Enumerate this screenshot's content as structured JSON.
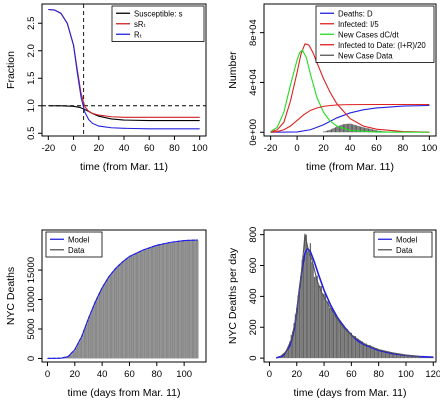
{
  "chart_data": [
    {
      "id": "p1",
      "type": "line",
      "xlabel": "time (from Mar. 11)",
      "ylabel": "Fraction",
      "xlim": [
        -25,
        105
      ],
      "ylim": [
        0.45,
        2.85
      ],
      "xticks": [
        -20,
        0,
        20,
        40,
        60,
        80,
        100
      ],
      "yticks": [
        0.5,
        1.0,
        1.5,
        2.0,
        2.5
      ],
      "ytick_labels": [
        "0.5",
        "1.0",
        "1.5",
        "2.0",
        "2.5"
      ],
      "hlines": [
        {
          "y": 1.0,
          "style": "dashed"
        }
      ],
      "vlines": [
        {
          "x": 8,
          "style": "dashed"
        }
      ],
      "legend": {
        "position": "top-right",
        "entries": [
          "Susceptible: s",
          "sRₜ",
          "Rₜ"
        ]
      },
      "series": [
        {
          "name": "Susceptible: s",
          "color": "#000000",
          "x": [
            -20,
            -10,
            0,
            5,
            10,
            15,
            20,
            30,
            40,
            60,
            100
          ],
          "y": [
            1.0,
            0.999,
            0.99,
            0.97,
            0.92,
            0.86,
            0.81,
            0.76,
            0.74,
            0.73,
            0.73
          ]
        },
        {
          "name": "sRₜ",
          "color": "#cc2222",
          "x": [
            -20,
            -15,
            -10,
            -5,
            0,
            3,
            6,
            9,
            12,
            15,
            20,
            30,
            40,
            60,
            100
          ],
          "y": [
            2.75,
            2.74,
            2.68,
            2.5,
            2.1,
            1.65,
            1.22,
            0.98,
            0.9,
            0.86,
            0.83,
            0.8,
            0.79,
            0.79,
            0.79
          ]
        },
        {
          "name": "Rₜ",
          "color": "#2222dd",
          "x": [
            -20,
            -15,
            -10,
            -5,
            0,
            3,
            6,
            9,
            12,
            15,
            20,
            30,
            40,
            60,
            100
          ],
          "y": [
            2.75,
            2.74,
            2.68,
            2.5,
            2.1,
            1.6,
            1.15,
            0.88,
            0.75,
            0.68,
            0.63,
            0.6,
            0.59,
            0.58,
            0.58
          ]
        }
      ]
    },
    {
      "id": "p2",
      "type": "line",
      "xlabel": "time (from Mar. 11)",
      "ylabel": "Number",
      "xlim": [
        -25,
        105
      ],
      "ylim": [
        -3000,
        103000
      ],
      "xticks": [
        -20,
        0,
        20,
        40,
        60,
        80,
        100
      ],
      "yticks": [
        0,
        40000,
        80000
      ],
      "ytick_labels": [
        "0e+00",
        "4e+04",
        "8e+04"
      ],
      "legend": {
        "position": "top-right",
        "entries": [
          "Deaths: D",
          "Infected: I/5",
          "New Cases dC/dt",
          "Infected to Date: (I+R)/20",
          "New Case Data"
        ]
      },
      "series": [
        {
          "name": "Deaths: D",
          "color": "#2222dd",
          "x": [
            -20,
            0,
            10,
            20,
            30,
            40,
            50,
            60,
            80,
            100
          ],
          "y": [
            0,
            300,
            2000,
            6000,
            11500,
            15500,
            18000,
            19500,
            21000,
            21500
          ]
        },
        {
          "name": "Infected: I/5",
          "color": "#dd2222",
          "x": [
            -20,
            -15,
            -10,
            -5,
            0,
            3,
            6,
            9,
            12,
            15,
            20,
            25,
            30,
            40,
            50,
            60,
            80,
            100
          ],
          "y": [
            300,
            2000,
            8000,
            25000,
            48000,
            63000,
            71000,
            70000,
            64000,
            56000,
            43000,
            32000,
            23000,
            11000,
            5000,
            2500,
            600,
            100
          ]
        },
        {
          "name": "New Cases dC/dt",
          "color": "#22dd22",
          "x": [
            -20,
            -15,
            -10,
            -5,
            0,
            2,
            4,
            7,
            10,
            15,
            20,
            25,
            30,
            40,
            60,
            100
          ],
          "y": [
            500,
            4000,
            16000,
            38000,
            58000,
            64000,
            66000,
            60000,
            47000,
            28000,
            16000,
            9000,
            5000,
            1500,
            200,
            0
          ]
        },
        {
          "name": "Infected to Date: (I+R)/20",
          "color": "#dd2222",
          "x": [
            -20,
            -15,
            -10,
            -5,
            0,
            5,
            10,
            15,
            20,
            25,
            30,
            35,
            40,
            60,
            100
          ],
          "y": [
            100,
            600,
            2000,
            5000,
            9500,
            14000,
            17500,
            19500,
            20800,
            21500,
            21900,
            22100,
            22200,
            22300,
            22300
          ]
        }
      ],
      "bars": {
        "name": "New Case Data",
        "color": "#555555",
        "x": [
          20,
          25,
          30,
          35,
          40,
          45,
          50,
          55,
          60,
          65,
          70,
          75,
          80,
          85,
          90,
          95,
          100
        ],
        "values": [
          500,
          2000,
          4500,
          6500,
          7000,
          5500,
          4000,
          2800,
          1500,
          800,
          500,
          300,
          150,
          80,
          50,
          20,
          10
        ]
      }
    },
    {
      "id": "p3",
      "type": "area",
      "xlabel": "time (days from Mar. 11)",
      "ylabel": "NYC Deaths",
      "xlim": [
        -4,
        116
      ],
      "ylim": [
        -600,
        21800
      ],
      "xticks": [
        0,
        20,
        40,
        60,
        80,
        100
      ],
      "yticks": [
        0,
        5000,
        10000,
        15000
      ],
      "ytick_labels": [
        "0",
        "5000",
        "10000",
        "15000"
      ],
      "legend": {
        "position": "top-left",
        "entries": [
          "Model",
          "Data"
        ]
      },
      "series": [
        {
          "name": "Model",
          "color": "#2222dd",
          "x": [
            0,
            10,
            15,
            20,
            25,
            30,
            35,
            40,
            45,
            50,
            55,
            60,
            70,
            80,
            90,
            100,
            110
          ],
          "y": [
            0,
            50,
            300,
            1500,
            3700,
            6800,
            9600,
            12000,
            13900,
            15300,
            16400,
            17300,
            18400,
            19200,
            19700,
            20000,
            20100
          ]
        },
        {
          "name": "Data",
          "color": "#555555",
          "x": [
            0,
            10,
            15,
            20,
            25,
            30,
            35,
            40,
            45,
            50,
            55,
            60,
            70,
            80,
            90,
            100,
            110
          ],
          "y": [
            0,
            40,
            250,
            1300,
            3500,
            6600,
            9500,
            11900,
            13800,
            15200,
            16300,
            17200,
            18300,
            19100,
            19600,
            19900,
            20000
          ]
        }
      ]
    },
    {
      "id": "p4",
      "type": "bar",
      "xlabel": "time (days from Mar. 11)",
      "ylabel": "NYC Deaths per day",
      "xlim": [
        -4,
        122
      ],
      "ylim": [
        -25,
        830
      ],
      "xticks": [
        0,
        20,
        40,
        60,
        80,
        100,
        120
      ],
      "yticks": [
        0,
        200,
        400,
        600,
        800
      ],
      "ytick_labels": [
        "0",
        "200",
        "400",
        "600",
        "800"
      ],
      "legend": {
        "position": "top-right",
        "entries": [
          "Model",
          "Data"
        ]
      },
      "series": [
        {
          "name": "Model",
          "color": "#2222dd",
          "x": [
            5,
            10,
            15,
            18,
            20,
            22,
            24,
            26,
            28,
            30,
            33,
            36,
            40,
            45,
            50,
            55,
            60,
            65,
            70,
            80,
            90,
            100,
            110,
            120
          ],
          "y": [
            2,
            15,
            80,
            180,
            300,
            450,
            580,
            680,
            710,
            690,
            620,
            540,
            440,
            340,
            260,
            200,
            150,
            110,
            85,
            50,
            30,
            18,
            10,
            6
          ]
        },
        {
          "name": "Data",
          "color": "#555555",
          "x": [
            8,
            12,
            16,
            19,
            21,
            23,
            25,
            26,
            27,
            29,
            31,
            33,
            35,
            38,
            41,
            45,
            50,
            55,
            60,
            70,
            80,
            90,
            100,
            110
          ],
          "y": [
            10,
            40,
            120,
            240,
            380,
            520,
            700,
            800,
            760,
            680,
            640,
            570,
            500,
            430,
            380,
            320,
            250,
            190,
            150,
            90,
            55,
            35,
            20,
            10
          ]
        }
      ],
      "bars": {
        "name": "Data",
        "color": "#666666",
        "x": [
          5,
          7,
          9,
          11,
          13,
          15,
          17,
          19,
          21,
          23,
          25,
          26,
          27,
          28,
          29,
          30,
          31,
          32,
          33,
          35,
          37,
          39,
          41,
          43,
          45,
          47,
          49,
          52,
          55,
          58,
          61,
          64,
          67,
          70,
          74,
          78,
          82,
          86,
          90,
          95,
          100,
          105,
          110,
          115,
          120
        ],
        "values": [
          2,
          5,
          10,
          25,
          55,
          110,
          180,
          270,
          400,
          540,
          700,
          810,
          770,
          720,
          680,
          710,
          640,
          600,
          560,
          520,
          470,
          430,
          400,
          360,
          330,
          300,
          270,
          230,
          200,
          175,
          150,
          130,
          110,
          95,
          80,
          65,
          52,
          42,
          35,
          26,
          20,
          14,
          10,
          7,
          5
        ]
      }
    }
  ]
}
